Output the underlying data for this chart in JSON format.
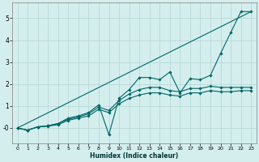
{
  "xlabel": "Humidex (Indice chaleur)",
  "bg_color": "#d4eeee",
  "grid_color": "#b8d8d8",
  "line_color": "#006666",
  "xlim": [
    -0.5,
    23.5
  ],
  "ylim": [
    -0.7,
    5.7
  ],
  "xticks": [
    0,
    1,
    2,
    3,
    4,
    5,
    6,
    7,
    8,
    9,
    10,
    11,
    12,
    13,
    14,
    15,
    16,
    17,
    18,
    19,
    20,
    21,
    22,
    23
  ],
  "yticks": [
    0,
    1,
    2,
    3,
    4,
    5
  ],
  "ytick_labels": [
    "-0",
    "1",
    "2",
    "3",
    "4",
    "5"
  ],
  "lines": [
    {
      "x": [
        0,
        1,
        2,
        3,
        4,
        5,
        6,
        7,
        8,
        9,
        10,
        11,
        12,
        13,
        14,
        15,
        16,
        17,
        18,
        19,
        20,
        21,
        22,
        23
      ],
      "y": [
        0.0,
        -0.1,
        0.05,
        0.1,
        0.2,
        0.45,
        0.55,
        0.7,
        1.05,
        -0.3,
        1.35,
        1.75,
        2.3,
        2.3,
        2.2,
        2.55,
        1.6,
        2.25,
        2.2,
        2.4,
        3.4,
        4.35,
        5.3,
        5.3
      ],
      "marker": true
    },
    {
      "x": [
        0,
        1,
        2,
        3,
        4,
        5,
        6,
        7,
        8,
        9,
        10,
        11,
        12,
        13,
        14,
        15,
        16,
        17,
        18,
        19,
        20,
        21,
        22,
        23
      ],
      "y": [
        0.0,
        -0.1,
        0.05,
        0.1,
        0.2,
        0.4,
        0.5,
        0.65,
        0.95,
        0.8,
        1.25,
        1.55,
        1.75,
        1.85,
        1.85,
        1.7,
        1.65,
        1.8,
        1.8,
        1.9,
        1.85,
        1.85,
        1.85,
        1.85
      ],
      "marker": true
    },
    {
      "x": [
        0,
        1,
        2,
        3,
        4,
        5,
        6,
        7,
        8,
        9,
        10,
        11,
        12,
        13,
        14,
        15,
        16,
        17,
        18,
        19,
        20,
        21,
        22,
        23
      ],
      "y": [
        0.0,
        -0.1,
        0.05,
        0.08,
        0.15,
        0.35,
        0.45,
        0.55,
        0.85,
        0.7,
        1.1,
        1.35,
        1.5,
        1.6,
        1.6,
        1.5,
        1.45,
        1.6,
        1.6,
        1.7,
        1.65,
        1.65,
        1.7,
        1.7
      ],
      "marker": true
    },
    {
      "x": [
        0,
        23
      ],
      "y": [
        0.0,
        5.3
      ],
      "marker": false
    }
  ]
}
